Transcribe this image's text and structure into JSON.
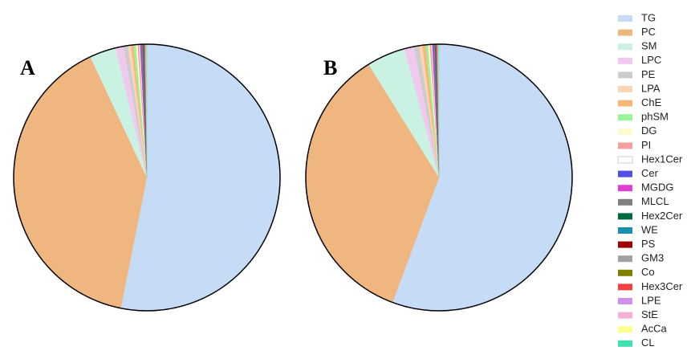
{
  "chart_data": [
    {
      "type": "pie",
      "title": "A",
      "categories": [
        "TG",
        "PC",
        "SM",
        "LPC",
        "PE",
        "LPA",
        "ChE",
        "phSM",
        "DG",
        "PI",
        "Hex1Cer",
        "Cer",
        "MGDG",
        "MLCL",
        "Hex2Cer",
        "WE",
        "PS",
        "GM3",
        "Co",
        "Hex3Cer",
        "LPE",
        "StE",
        "AcCa",
        "CL"
      ],
      "values": [
        53.3,
        40.0,
        3.2,
        1.0,
        0.5,
        0.4,
        0.3,
        0.3,
        0.2,
        0.2,
        0.1,
        0.1,
        0.1,
        0.1,
        0.05,
        0.05,
        0.05,
        0.05,
        0.05,
        0.05,
        0.05,
        0.05,
        0.05,
        0.05
      ],
      "colors": [
        "#c6dbf6",
        "#f0b67f",
        "#c9f2e3",
        "#f0c9ef",
        "#cccccc",
        "#fcd5b5",
        "#f7b77a",
        "#99f59a",
        "#fdfccf",
        "#f4a0a0",
        "#ffffff",
        "#5050e6",
        "#e040d0",
        "#808080",
        "#006a40",
        "#1a90b0",
        "#a00000",
        "#a0a0a0",
        "#808000",
        "#f04040",
        "#d090f0",
        "#f8b0d8",
        "#fffd90",
        "#40e0b0"
      ]
    },
    {
      "type": "pie",
      "title": "B",
      "categories": [
        "TG",
        "PC",
        "SM",
        "LPC",
        "PE",
        "LPA",
        "ChE",
        "phSM",
        "DG",
        "PI",
        "Hex1Cer",
        "Cer",
        "MGDG",
        "MLCL",
        "Hex2Cer",
        "WE",
        "PS",
        "GM3",
        "Co",
        "Hex3Cer",
        "LPE",
        "StE",
        "AcCa",
        "CL"
      ],
      "values": [
        55.9,
        35.6,
        4.7,
        1.2,
        0.6,
        0.4,
        0.4,
        0.3,
        0.2,
        0.2,
        0.1,
        0.1,
        0.1,
        0.1,
        0.05,
        0.05,
        0.05,
        0.05,
        0.05,
        0.05,
        0.05,
        0.05,
        0.05,
        0.05
      ],
      "colors": [
        "#c6dbf6",
        "#f0b67f",
        "#c9f2e3",
        "#f0c9ef",
        "#cccccc",
        "#fcd5b5",
        "#f7b77a",
        "#99f59a",
        "#fdfccf",
        "#f4a0a0",
        "#ffffff",
        "#5050e6",
        "#e040d0",
        "#808080",
        "#006a40",
        "#1a90b0",
        "#a00000",
        "#a0a0a0",
        "#808000",
        "#f04040",
        "#d090f0",
        "#f8b0d8",
        "#fffd90",
        "#40e0b0"
      ]
    }
  ]
}
